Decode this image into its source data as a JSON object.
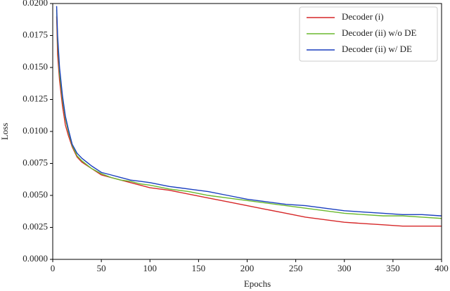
{
  "chart_data": {
    "type": "line",
    "xlabel": "Epochs",
    "ylabel": "Loss",
    "x": [
      4,
      5,
      7,
      10,
      13,
      16,
      20,
      25,
      30,
      40,
      50,
      60,
      70,
      80,
      90,
      100,
      120,
      140,
      160,
      180,
      200,
      220,
      240,
      260,
      280,
      300,
      320,
      340,
      360,
      380,
      400
    ],
    "series": [
      {
        "name": "Decoder (i)",
        "color": "#d62728",
        "values": [
          0.019,
          0.016,
          0.014,
          0.012,
          0.0105,
          0.0097,
          0.0088,
          0.008,
          0.0076,
          0.0071,
          0.0066,
          0.0064,
          0.0062,
          0.006,
          0.0058,
          0.0056,
          0.0054,
          0.0051,
          0.0048,
          0.0045,
          0.0042,
          0.0039,
          0.0036,
          0.0033,
          0.0031,
          0.0029,
          0.0028,
          0.0027,
          0.0026,
          0.0026,
          0.0026
        ]
      },
      {
        "name": "Decoder (ii) w/o DE",
        "color": "#6ab82e",
        "values": [
          0.0195,
          0.017,
          0.0145,
          0.0125,
          0.011,
          0.01,
          0.0089,
          0.0081,
          0.0077,
          0.0071,
          0.0067,
          0.0064,
          0.0062,
          0.0061,
          0.0059,
          0.0058,
          0.0055,
          0.0053,
          0.005,
          0.0048,
          0.0046,
          0.0044,
          0.0042,
          0.004,
          0.0038,
          0.0036,
          0.0035,
          0.0034,
          0.0034,
          0.0033,
          0.0032
        ]
      },
      {
        "name": "Decoder (ii) w/ DE",
        "color": "#1a3fbf",
        "values": [
          0.0198,
          0.0175,
          0.015,
          0.0128,
          0.0112,
          0.0102,
          0.009,
          0.0083,
          0.0079,
          0.0073,
          0.0068,
          0.0066,
          0.0064,
          0.0062,
          0.0061,
          0.006,
          0.0057,
          0.0055,
          0.0053,
          0.005,
          0.0047,
          0.0045,
          0.0043,
          0.0042,
          0.004,
          0.0038,
          0.0037,
          0.0036,
          0.0035,
          0.0035,
          0.0034
        ]
      }
    ],
    "xlim": [
      0,
      400
    ],
    "xticks": [
      0,
      50,
      100,
      150,
      200,
      250,
      300,
      350,
      400
    ],
    "ylim": [
      0,
      0.02
    ],
    "yticks": [
      {
        "value": 0,
        "label": "0.0000"
      },
      {
        "value": 0.0025,
        "label": "0.0025"
      },
      {
        "value": 0.005,
        "label": "0.0050"
      },
      {
        "value": 0.0075,
        "label": "0.0075"
      },
      {
        "value": 0.01,
        "label": "0.0100"
      },
      {
        "value": 0.0125,
        "label": "0.0125"
      },
      {
        "value": 0.015,
        "label": "0.0150"
      },
      {
        "value": 0.0175,
        "label": "0.0175"
      },
      {
        "value": 0.02,
        "label": "0.0200"
      }
    ],
    "legend": "upper right"
  }
}
